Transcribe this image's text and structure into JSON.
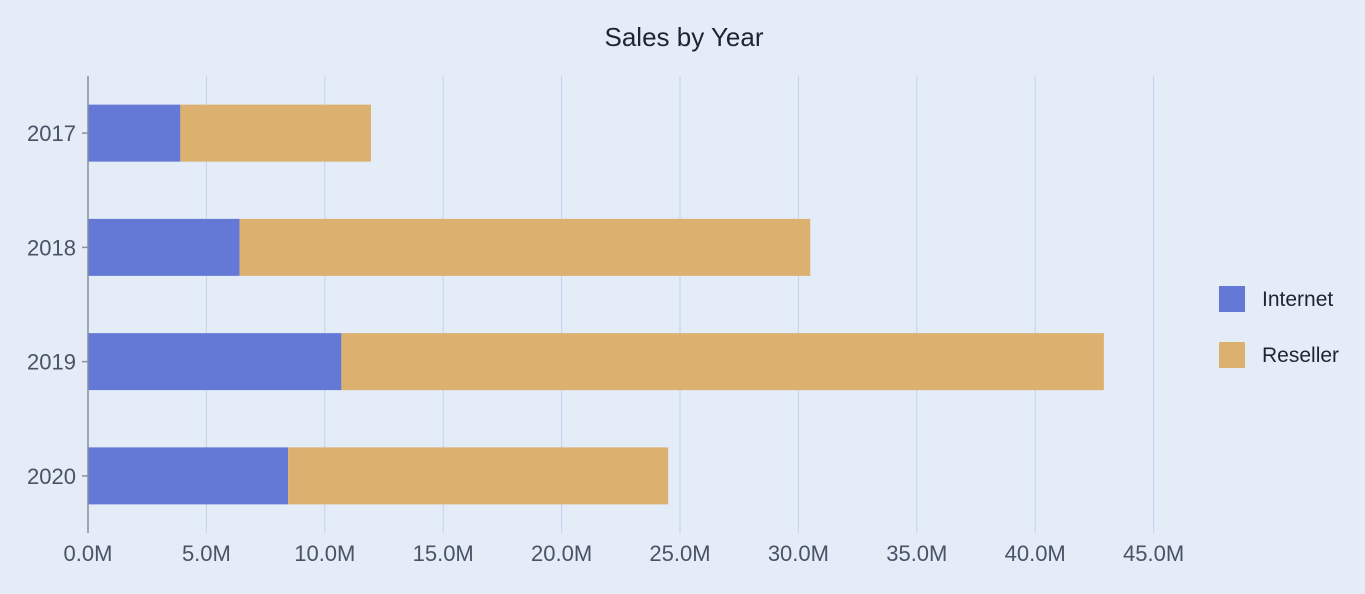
{
  "chart_data": {
    "type": "bar",
    "orientation": "horizontal",
    "stacked": true,
    "title": "Sales by Year",
    "xlabel": "",
    "ylabel": "",
    "categories": [
      "2017",
      "2018",
      "2019",
      "2020"
    ],
    "series": [
      {
        "name": "Internet",
        "color": "#6479d6",
        "values": [
          3.9,
          6.4,
          10.7,
          8.45
        ]
      },
      {
        "name": "Reseller",
        "color": "#dcb06f",
        "values": [
          8.05,
          24.1,
          32.2,
          16.05
        ]
      }
    ],
    "xlim": [
      0,
      45
    ],
    "x_ticks": [
      "0.0M",
      "5.0M",
      "10.0M",
      "15.0M",
      "20.0M",
      "25.0M",
      "30.0M",
      "35.0M",
      "40.0M",
      "45.0M"
    ],
    "units": "M",
    "grid": true,
    "legend_position": "right"
  },
  "colors": {
    "background": "#e4ecf8",
    "gridline": "#c3d1ec",
    "axis": "#8a8f99"
  }
}
